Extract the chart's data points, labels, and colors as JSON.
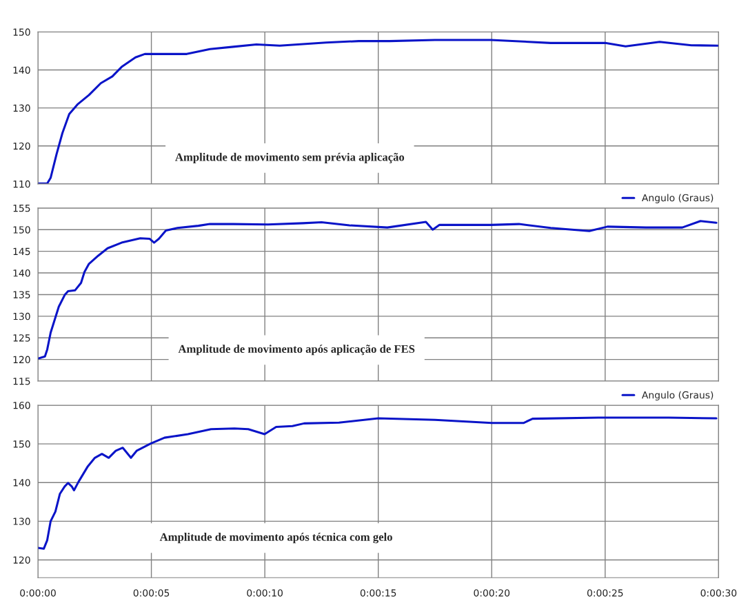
{
  "chart_data": [
    {
      "type": "line",
      "x": [
        0,
        0.41,
        0.56,
        0.82,
        1.08,
        1.38,
        1.74,
        2.25,
        2.77,
        3.28,
        3.69,
        4.3,
        4.71,
        5.53,
        6.56,
        7.58,
        8.61,
        9.63,
        10.66,
        11.68,
        12.7,
        14.14,
        15.5,
        17.5,
        19.96,
        22.6,
        25.0,
        25.9,
        27.4,
        28.8,
        29.97
      ],
      "series": [
        {
          "color": "#0a14c8",
          "values": [
            110.1,
            110.1,
            111.6,
            117.8,
            123.4,
            128.4,
            130.9,
            133.4,
            136.5,
            138.3,
            140.8,
            143.3,
            144.2,
            144.2,
            144.2,
            145.5,
            146.1,
            146.7,
            146.4,
            146.8,
            147.2,
            147.6,
            147.6,
            147.9,
            147.9,
            147.1,
            147.1,
            146.2,
            147.4,
            146.5,
            146.4
          ]
        }
      ],
      "xlim": [
        0,
        30
      ],
      "xticks": [
        0,
        5,
        10,
        15,
        20,
        25,
        30
      ],
      "ylim": [
        110,
        150
      ],
      "yticks": [
        110,
        120,
        130,
        140,
        150
      ],
      "grid": true,
      "tick_labels": "y",
      "annotations": [
        "Amplitude de movimento sem prévia aplicação"
      ]
    },
    {
      "type": "line",
      "x": [
        0,
        0.31,
        0.41,
        0.56,
        0.92,
        1.18,
        1.33,
        1.64,
        1.9,
        2.05,
        2.25,
        2.66,
        3.07,
        3.69,
        4.51,
        4.92,
        5.12,
        5.33,
        5.64,
        6.15,
        7.07,
        7.58,
        8.61,
        10.14,
        11.68,
        12.5,
        13.73,
        15.4,
        17.1,
        17.4,
        17.7,
        19.96,
        21.2,
        22.6,
        24.3,
        25.1,
        26.8,
        28.4,
        29.2,
        29.9
      ],
      "series": [
        {
          "name": "Angulo (Graus)",
          "color": "#0a14c8",
          "values": [
            120.2,
            120.7,
            122.3,
            126.2,
            132.2,
            134.9,
            135.8,
            136.0,
            137.7,
            140.2,
            142.1,
            144.0,
            145.7,
            147.0,
            148.0,
            147.9,
            147.0,
            147.9,
            149.8,
            150.4,
            150.9,
            151.3,
            151.3,
            151.2,
            151.5,
            151.7,
            151.0,
            150.5,
            151.8,
            150.0,
            151.1,
            151.1,
            151.3,
            150.4,
            149.7,
            150.7,
            150.5,
            150.5,
            152.0,
            151.6
          ]
        }
      ],
      "xlim": [
        0,
        30
      ],
      "xticks": [
        0,
        5,
        10,
        15,
        20,
        25,
        30
      ],
      "ylim": [
        115,
        155
      ],
      "yticks": [
        115,
        120,
        125,
        130,
        135,
        140,
        145,
        150,
        155
      ],
      "grid": true,
      "tick_labels": "y",
      "legend": "top right",
      "annotations": [
        "Amplitude de movimento após aplicação de FES"
      ]
    },
    {
      "type": "line",
      "x": [
        0,
        0.26,
        0.41,
        0.56,
        0.77,
        0.97,
        1.18,
        1.33,
        1.49,
        1.59,
        1.79,
        2.2,
        2.51,
        2.82,
        3.12,
        3.43,
        3.74,
        4.1,
        4.35,
        4.97,
        5.58,
        6.61,
        7.63,
        8.66,
        9.27,
        9.99,
        10.5,
        11.22,
        11.73,
        13.27,
        15.0,
        17.5,
        20.0,
        21.4,
        21.8,
        24.7,
        27.8,
        29.9
      ],
      "series": [
        {
          "name": "Angulo (Graus)",
          "color": "#0a14c8",
          "values": [
            123.1,
            122.9,
            125.1,
            130.0,
            132.5,
            137.1,
            139.0,
            139.9,
            139.0,
            138.0,
            140.2,
            144.2,
            146.4,
            147.4,
            146.4,
            148.2,
            149.0,
            146.4,
            148.2,
            150.1,
            151.6,
            152.5,
            153.8,
            154.0,
            153.8,
            152.5,
            154.4,
            154.6,
            155.3,
            155.5,
            156.6,
            156.2,
            155.4,
            155.4,
            156.5,
            156.8,
            156.8,
            156.6
          ]
        }
      ],
      "xlim": [
        0,
        30
      ],
      "xticks": [
        {
          "value": 0,
          "label": "0:00:00"
        },
        {
          "value": 5,
          "label": "0:00:05"
        },
        {
          "value": 10,
          "label": "0:00:10"
        },
        {
          "value": 15,
          "label": "0:00:15"
        },
        {
          "value": 20,
          "label": "0:00:20"
        },
        {
          "value": 25,
          "label": "0:00:25"
        },
        {
          "value": 30,
          "label": "0:00:30"
        }
      ],
      "ylim": [
        115.4,
        160
      ],
      "yticks": [
        120,
        130,
        140,
        150,
        160
      ],
      "grid": true,
      "legend": "top right",
      "annotations": [
        "Amplitude de movimento após técnica com gelo"
      ]
    }
  ]
}
